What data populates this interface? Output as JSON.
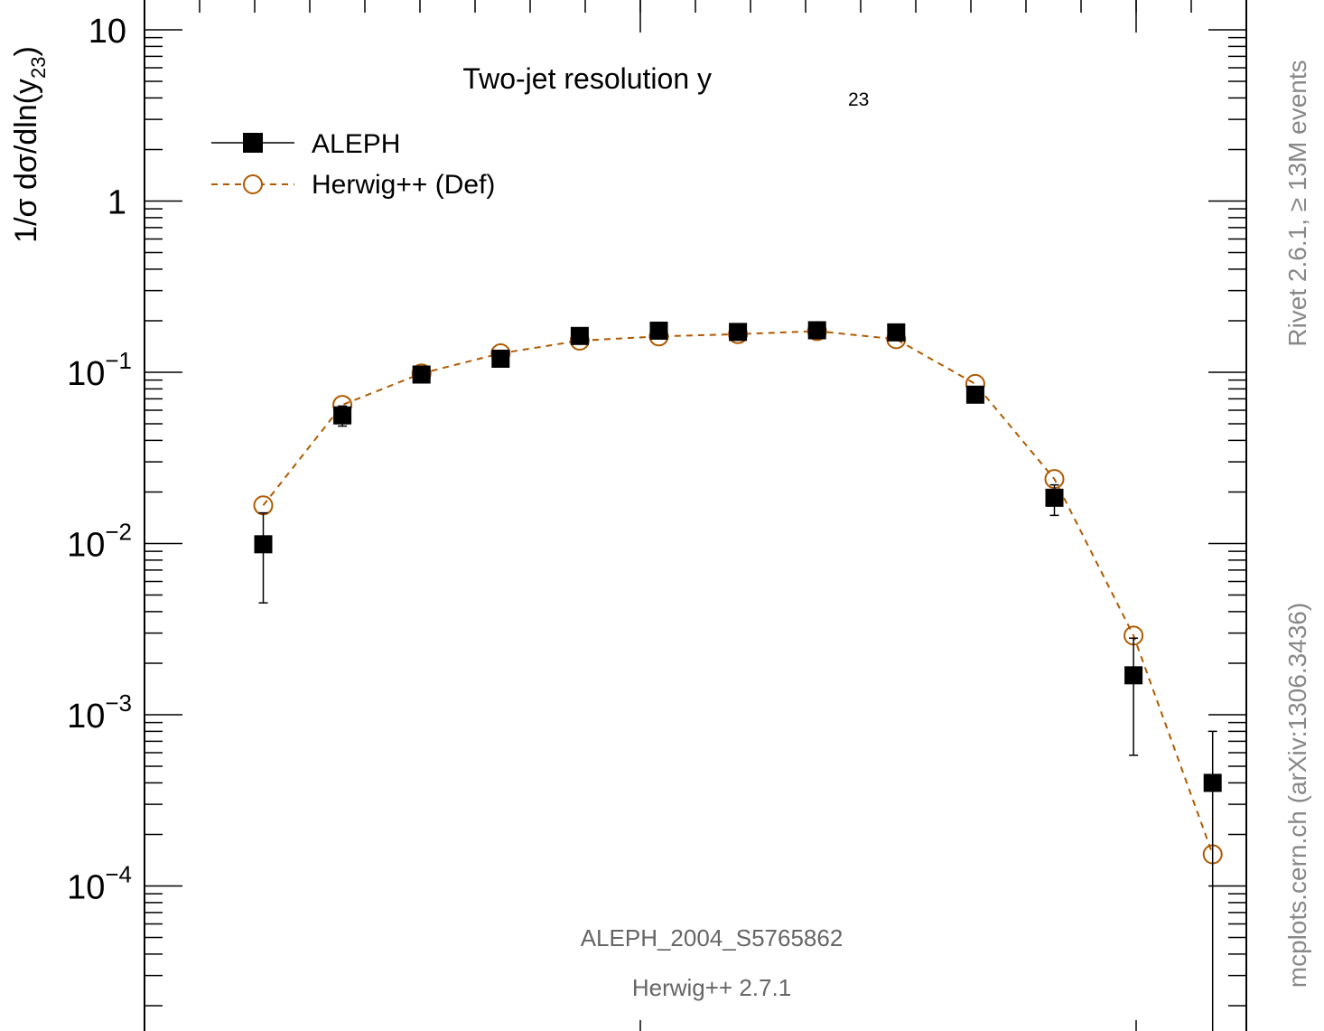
{
  "chart_data": {
    "type": "scatter",
    "title": "Two-jet resolution y",
    "title_sub": "23",
    "ylabel": "1/σ  dσ/dln(y",
    "ylabel_sub": "23",
    "ylabel_end": ")",
    "xlabel": "",
    "yscale": "log",
    "ylim": [
      1e-05,
      10
    ],
    "y_ticks": [
      {
        "value": 10,
        "label": "10",
        "exp": ""
      },
      {
        "value": 1,
        "label": "1",
        "exp": ""
      },
      {
        "value": 0.1,
        "label": "10",
        "exp": "−1"
      },
      {
        "value": 0.01,
        "label": "10",
        "exp": "−2"
      },
      {
        "value": 0.001,
        "label": "10",
        "exp": "−3"
      },
      {
        "value": 0.0001,
        "label": "10",
        "exp": "−4"
      }
    ],
    "grid": false,
    "legend_position": "top-left",
    "series": [
      {
        "name": "ALEPH",
        "color": "#000000",
        "marker": "filled-square",
        "line": "none",
        "points": [
          {
            "y": 0.0099,
            "err_lo": 0.0054,
            "err_hi": 0.0052
          },
          {
            "y": 0.056,
            "err_lo": 0.0075,
            "err_hi": 0.0075
          },
          {
            "y": 0.097,
            "err_lo": 0.004,
            "err_hi": 0.004
          },
          {
            "y": 0.12,
            "err_lo": 0.004,
            "err_hi": 0.004
          },
          {
            "y": 0.163,
            "err_lo": 0.004,
            "err_hi": 0.004
          },
          {
            "y": 0.175,
            "err_lo": 0.004,
            "err_hi": 0.004
          },
          {
            "y": 0.172,
            "err_lo": 0.004,
            "err_hi": 0.004
          },
          {
            "y": 0.176,
            "err_lo": 0.004,
            "err_hi": 0.004
          },
          {
            "y": 0.171,
            "err_lo": 0.004,
            "err_hi": 0.004
          },
          {
            "y": 0.074,
            "err_lo": 0.004,
            "err_hi": 0.004
          },
          {
            "y": 0.0185,
            "err_lo": 0.0039,
            "err_hi": 0.0035
          },
          {
            "y": 0.0017,
            "err_lo": 0.00112,
            "err_hi": 0.0011
          },
          {
            "y": 0.0004,
            "err_lo": 0.0004,
            "err_hi": 0.0004
          }
        ]
      },
      {
        "name": "Herwig++ (Def)",
        "color": "#b05a00",
        "marker": "open-circle",
        "line": "dashed",
        "points": [
          {
            "y": 0.0167
          },
          {
            "y": 0.0645
          },
          {
            "y": 0.0985
          },
          {
            "y": 0.129
          },
          {
            "y": 0.153
          },
          {
            "y": 0.162
          },
          {
            "y": 0.167
          },
          {
            "y": 0.174
          },
          {
            "y": 0.156
          },
          {
            "y": 0.0855
          },
          {
            "y": 0.0238
          },
          {
            "y": 0.0029
          },
          {
            "y": 0.000153
          }
        ]
      }
    ],
    "annotations": [
      "ALEPH_2004_S5765862",
      "Herwig++ 2.7.1"
    ],
    "side_label_top": "Rivet 2.6.1,  ≥ 13M events",
    "side_label_bottom": "mcplots.cern.ch (arXiv:1306.3436)"
  }
}
